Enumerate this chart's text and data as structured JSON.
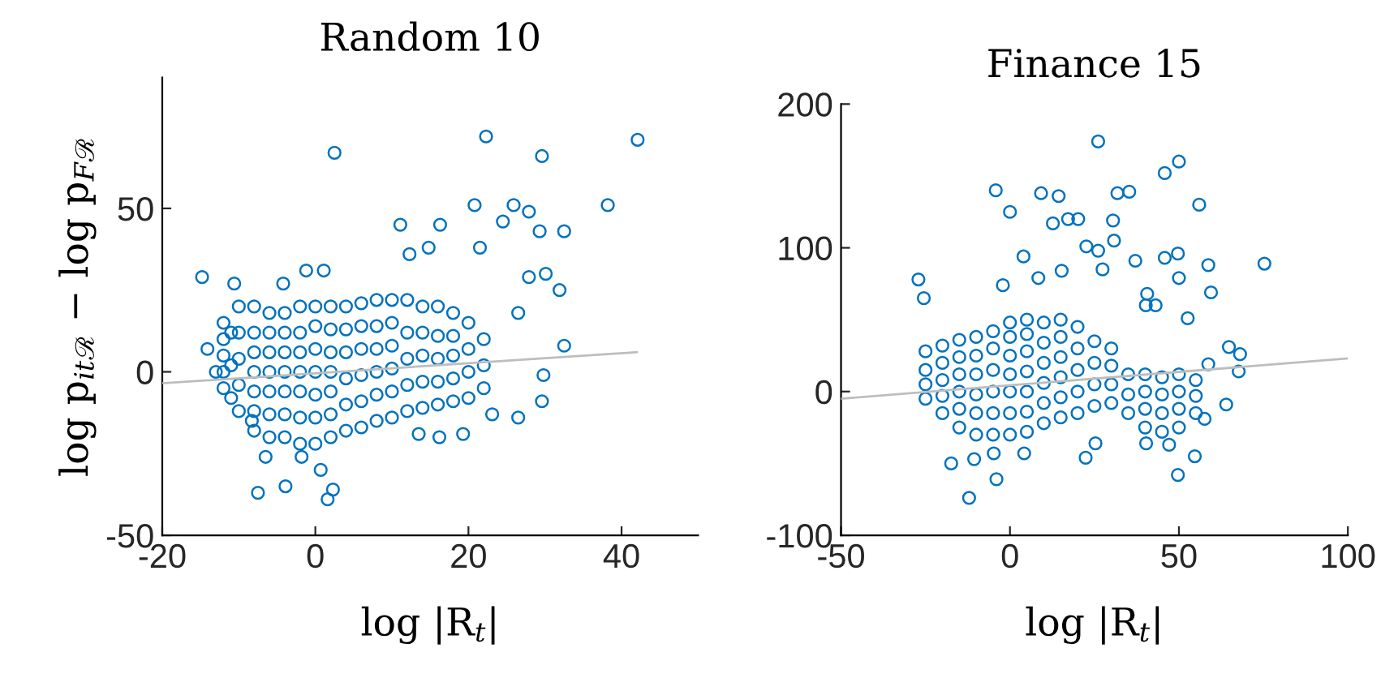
{
  "chart_data": [
    {
      "type": "scatter",
      "title": "Random 10",
      "xlabel": "log |R$_{t}$|",
      "ylabel": "log p$_{itℛ}$ − log p$_{Fℛ}$",
      "xlim": [
        -20,
        50
      ],
      "ylim": [
        -50,
        90
      ],
      "xticks": [
        -20,
        0,
        20,
        40
      ],
      "yticks": [
        -50,
        0,
        50
      ],
      "grid": false,
      "series": [
        {
          "color": "#0072bd",
          "marker": "circle",
          "x": [
            2.5,
            22.3,
            29.6,
            42.1,
            38.2,
            20.8,
            25.9,
            27.9,
            24.5,
            11.1,
            16.3,
            29.3,
            32.5,
            21.5,
            14.8,
            12.3,
            1.1,
            -1.2,
            -14.8,
            -10.6,
            -4.2,
            27.9,
            30.1,
            31.9,
            26.5,
            32.5,
            -14.1,
            -13.0,
            29.8,
            29.6,
            26.5,
            23.1,
            19.3,
            13.5,
            16.2,
            0.7,
            -7.5,
            -3.9,
            1.6,
            2.3,
            -6.5,
            -1.8,
            -8.3,
            -12,
            -12,
            -12,
            -12,
            -12,
            -11,
            -11,
            -11,
            -10,
            -10,
            -10,
            -10,
            -10,
            -8,
            -8,
            -8,
            -8,
            -8,
            -8,
            -8,
            -6,
            -6,
            -6,
            -6,
            -6,
            -6,
            -6,
            -4,
            -4,
            -4,
            -4,
            -4,
            -4,
            -4,
            -2,
            -2,
            -2,
            -2,
            -2,
            -2,
            -2,
            0,
            0,
            0,
            0,
            0,
            0,
            0,
            2,
            2,
            2,
            2,
            2,
            2,
            2,
            4,
            4,
            4,
            4,
            4,
            4,
            6,
            6,
            6,
            6,
            6,
            6,
            8,
            8,
            8,
            8,
            8,
            8,
            10,
            10,
            10,
            10,
            10,
            10,
            12,
            12,
            12,
            12,
            12,
            14,
            14,
            14,
            14,
            14,
            16,
            16,
            16,
            16,
            16,
            18,
            18,
            18,
            18,
            18,
            20,
            20,
            20,
            20,
            22,
            22,
            22
          ],
          "values": [
            67,
            72,
            66,
            71,
            51,
            51,
            51,
            49,
            46,
            45,
            45,
            43,
            43,
            38,
            38,
            36,
            31,
            31,
            29,
            27,
            27,
            29,
            30,
            25,
            18,
            8,
            7,
            0,
            -1,
            -9,
            -14,
            -13,
            -19,
            -19,
            -20,
            -30,
            -37,
            -35,
            -39,
            -36,
            -26,
            -26,
            -15,
            -5,
            0,
            5,
            10,
            15,
            -8,
            2,
            12,
            -12,
            -4,
            4,
            12,
            20,
            -18,
            -12,
            -6,
            0,
            6,
            12,
            20,
            -20,
            -13,
            -6,
            0,
            6,
            12,
            18,
            -20,
            -13,
            -6,
            0,
            6,
            12,
            18,
            -22,
            -14,
            -6,
            0,
            6,
            12,
            20,
            -22,
            -14,
            -7,
            0,
            7,
            14,
            20,
            -20,
            -13,
            -6,
            0,
            6,
            13,
            20,
            -18,
            -10,
            -2,
            6,
            13,
            20,
            -17,
            -9,
            -1,
            7,
            14,
            21,
            -15,
            -7,
            0,
            7,
            14,
            22,
            -14,
            -6,
            1,
            8,
            15,
            22,
            -12,
            -4,
            4,
            12,
            22,
            -11,
            -3,
            5,
            12,
            20,
            -10,
            -3,
            4,
            11,
            20,
            -9,
            -2,
            5,
            11,
            18,
            -8,
            0,
            7,
            15,
            -5,
            2,
            10
          ]
        },
        {
          "type": "line",
          "marker": "none",
          "color": "#bdbdbd",
          "x": [
            -20,
            42
          ],
          "values": [
            -3.5,
            6
          ]
        }
      ]
    },
    {
      "type": "scatter",
      "title": "Finance 15",
      "xlabel": "log |R$_{t}$|",
      "xlim": [
        -50,
        100
      ],
      "ylim": [
        -100,
        200
      ],
      "xticks": [
        -50,
        0,
        50,
        100
      ],
      "yticks": [
        -100,
        0,
        100,
        200
      ],
      "grid": false,
      "series": [
        {
          "color": "#0072bd",
          "marker": "circle",
          "x": [
            26.1,
            50,
            45.8,
            -4.2,
            9.2,
            14.4,
            31.8,
            35.3,
            56,
            0,
            12.7,
            17.2,
            20.2,
            30.5,
            30.8,
            4,
            22.6,
            26.1,
            49.7,
            75.3,
            58.7,
            45.8,
            37.1,
            27.4,
            15.3,
            -27.1,
            -25.5,
            -2.1,
            8.4,
            59.5,
            40.6,
            50,
            40.2,
            43.1,
            52.6,
            64.8,
            68.1,
            67.7,
            58.7,
            64,
            57.6,
            54.7,
            49.7,
            47.1,
            40.3,
            22.4,
            25.3,
            4.2,
            -4,
            -12.1,
            -17.4,
            -10.6,
            -4.8,
            -25,
            -25,
            -25,
            -25,
            -20,
            -20,
            -20,
            -20,
            -20,
            -15,
            -15,
            -15,
            -15,
            -15,
            -15,
            -10,
            -10,
            -10,
            -10,
            -10,
            -10,
            -5,
            -5,
            -5,
            -5,
            -5,
            -5,
            0,
            0,
            0,
            0,
            0,
            0,
            0,
            5,
            5,
            5,
            5,
            5,
            5,
            5,
            10,
            10,
            10,
            10,
            10,
            10,
            15,
            15,
            15,
            15,
            15,
            15,
            20,
            20,
            20,
            20,
            20,
            25,
            25,
            25,
            25,
            30,
            30,
            30,
            30,
            35,
            35,
            35,
            40,
            40,
            40,
            40,
            45,
            45,
            45,
            45,
            50,
            50,
            50,
            50,
            55,
            55,
            55
          ],
          "values": [
            174,
            160,
            152,
            140,
            138,
            136,
            138,
            139,
            130,
            125,
            117,
            120,
            120,
            119,
            105,
            94,
            101,
            98,
            96,
            89,
            88,
            93,
            91,
            85,
            84,
            78,
            65,
            74,
            79,
            69,
            68,
            79,
            60,
            60,
            51,
            31,
            26,
            14,
            19,
            -9,
            -19,
            -45,
            -58,
            -37,
            -36,
            -46,
            -36,
            -43,
            -61,
            -74,
            -50,
            -47,
            -43,
            -5,
            5,
            15,
            28,
            -15,
            -3,
            8,
            20,
            32,
            -25,
            -12,
            0,
            12,
            24,
            36,
            -30,
            -15,
            -2,
            12,
            25,
            38,
            -30,
            -15,
            0,
            15,
            30,
            42,
            -30,
            -15,
            0,
            12,
            25,
            38,
            48,
            -28,
            -14,
            0,
            14,
            28,
            40,
            50,
            -22,
            -8,
            6,
            20,
            34,
            48,
            -18,
            -4,
            10,
            24,
            38,
            50,
            -15,
            0,
            15,
            30,
            45,
            -10,
            5,
            20,
            35,
            -8,
            5,
            18,
            30,
            -15,
            -2,
            12,
            -25,
            -12,
            0,
            12,
            -28,
            -15,
            -2,
            10,
            -25,
            -12,
            0,
            12,
            -15,
            -3,
            8
          ]
        },
        {
          "type": "line",
          "marker": "none",
          "color": "#bdbdbd",
          "x": [
            -50,
            100
          ],
          "values": [
            -5,
            23
          ]
        }
      ]
    }
  ]
}
